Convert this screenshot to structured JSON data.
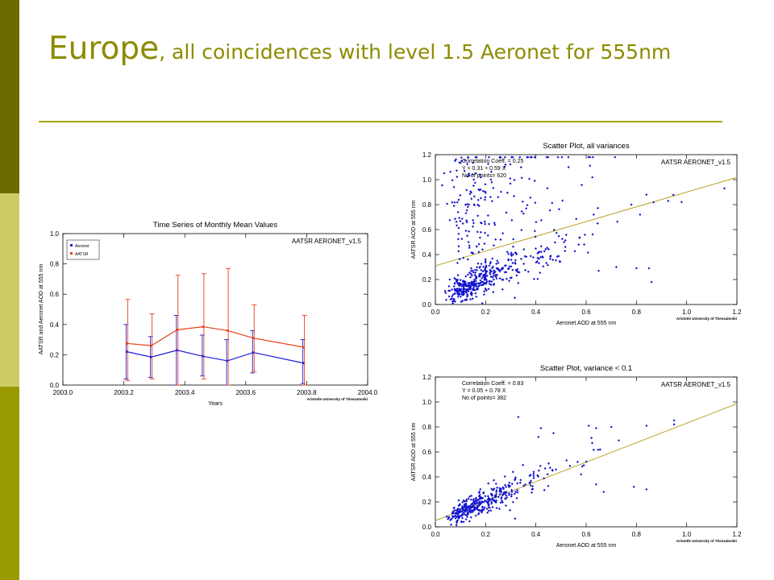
{
  "slide": {
    "title_big": "Europe",
    "title_rest": ", all coincidences with level 1.5 Aeronet for 555nm"
  },
  "colors": {
    "sidebar_dark": "#6b6b00",
    "sidebar_light": "#cccc66",
    "sidebar_mid": "#999900",
    "title": "#8c8c00",
    "aeronet": "#1a1ad9",
    "aatsr": "#e8401a",
    "fit_line": "#b8a020",
    "points": "#1010d0"
  },
  "chart_data": [
    {
      "type": "line",
      "title": "Time Series of Monthly Mean Values",
      "xlabel": "Years",
      "ylabel": "AATSR and Aeronet AOD at 555 nm",
      "watermark": "AATSR AERONET_v1.5",
      "credit": "Aristotle University of Thessaloniki",
      "xlim": [
        2003.0,
        2004.0
      ],
      "ylim": [
        0.0,
        1.0
      ],
      "xticks": [
        "2003.0",
        "2003.2",
        "2003.4",
        "2003.6",
        "2003.8",
        "2004.0"
      ],
      "yticks": [
        "0.0",
        "0.2",
        "0.4",
        "0.6",
        "0.8",
        "1.0"
      ],
      "legend": [
        "Aeronet",
        "AATSR"
      ],
      "x": [
        2003.21,
        2003.29,
        2003.375,
        2003.46,
        2003.54,
        2003.625,
        2003.79
      ],
      "series": [
        {
          "name": "Aeronet",
          "values": [
            0.22,
            0.185,
            0.23,
            0.19,
            0.16,
            0.215,
            0.145
          ],
          "err_low": [
            0.04,
            0.05,
            0.0,
            0.06,
            0.0,
            0.08,
            0.01
          ],
          "err_high": [
            0.4,
            0.32,
            0.46,
            0.33,
            0.3,
            0.36,
            0.3
          ]
        },
        {
          "name": "AATSR",
          "values": [
            0.275,
            0.26,
            0.365,
            0.385,
            0.36,
            0.31,
            0.25
          ],
          "err_low": [
            0.03,
            0.04,
            0.0,
            0.04,
            0.0,
            0.09,
            0.0
          ],
          "err_high": [
            0.565,
            0.47,
            0.725,
            0.735,
            0.77,
            0.53,
            0.46
          ]
        }
      ]
    },
    {
      "type": "scatter",
      "title": "Scatter Plot, all variances",
      "xlabel": "Aeronet AOD at 555 nm",
      "ylabel": "AATSR AOD at 555 nm",
      "watermark": "AATSR AERONET_v1.5",
      "credit": "Aristotle University of Thessaloniki",
      "annotation": [
        "Correlation Coeff. = 0.25",
        "Y = 0.31 + 0.59 X",
        "No of points= 620"
      ],
      "xlim": [
        0.0,
        1.2
      ],
      "ylim": [
        0.0,
        1.2
      ],
      "xticks": [
        "0.0",
        "0.2",
        "0.4",
        "0.6",
        "0.8",
        "1.0",
        "1.2"
      ],
      "yticks": [
        "0.0",
        "0.2",
        "0.4",
        "0.6",
        "0.8",
        "1.0",
        "1.2"
      ],
      "fit": {
        "intercept": 0.31,
        "slope": 0.59
      },
      "n_points": 620,
      "notable_points": [
        [
          1.15,
          0.93
        ],
        [
          0.98,
          0.82
        ],
        [
          0.84,
          0.88
        ],
        [
          0.78,
          0.8
        ],
        [
          0.86,
          0.18
        ],
        [
          0.72,
          0.3
        ],
        [
          0.8,
          0.29
        ],
        [
          0.85,
          0.29
        ],
        [
          0.65,
          0.27
        ],
        [
          0.53,
          1.1
        ],
        [
          0.63,
          0.72
        ]
      ]
    },
    {
      "type": "scatter",
      "title": "Scatter Plot, variance < 0.1",
      "xlabel": "Aeronet AOD at 555 nm",
      "ylabel": "AATSR AOD at 555 nm",
      "watermark": "AATSR AERONET_v1.5",
      "credit": "Aristotle University of Thessaloniki",
      "annotation": [
        "Correlation Coeff. = 0.83",
        "Y = 0.05 + 0.78 X",
        "No of points= 382"
      ],
      "xlim": [
        0.0,
        1.2
      ],
      "ylim": [
        0.0,
        1.2
      ],
      "xticks": [
        "0.0",
        "0.2",
        "0.4",
        "0.6",
        "0.8",
        "1.0",
        "1.2"
      ],
      "yticks": [
        "0.0",
        "0.2",
        "0.4",
        "0.6",
        "0.8",
        "1.0",
        "1.2"
      ],
      "fit": {
        "intercept": 0.05,
        "slope": 0.78
      },
      "n_points": 382,
      "notable_points": [
        [
          0.33,
          0.88
        ],
        [
          0.41,
          0.72
        ],
        [
          0.42,
          0.79
        ],
        [
          0.47,
          0.75
        ],
        [
          0.61,
          0.81
        ],
        [
          0.64,
          0.79
        ],
        [
          0.7,
          0.8
        ],
        [
          0.84,
          0.81
        ],
        [
          0.95,
          0.82
        ],
        [
          0.67,
          0.28
        ],
        [
          0.79,
          0.32
        ],
        [
          0.84,
          0.3
        ],
        [
          0.64,
          0.34
        ],
        [
          0.58,
          0.42
        ]
      ]
    }
  ]
}
